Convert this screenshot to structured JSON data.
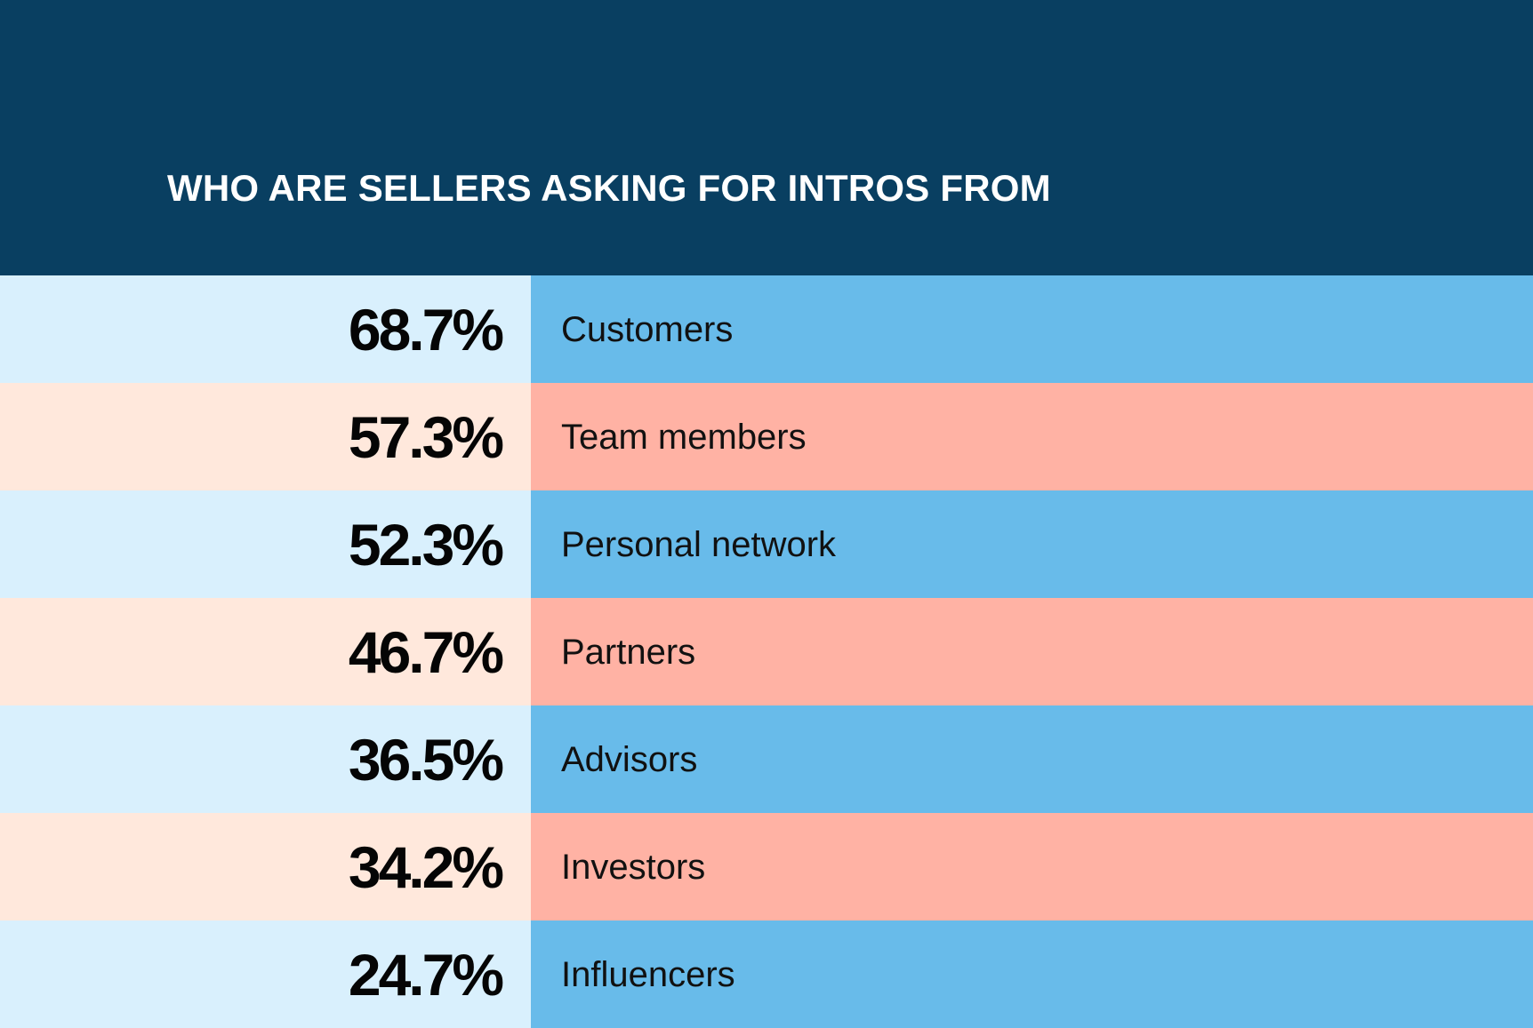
{
  "chart_data": {
    "type": "table",
    "title": "WHO ARE SELLERS ASKING FOR INTROS FROM",
    "categories": [
      "Customers",
      "Team members",
      "Personal network",
      "Partners",
      "Advisors",
      "Investors",
      "Influencers"
    ],
    "values": [
      68.7,
      57.3,
      52.3,
      46.7,
      36.5,
      34.2,
      24.7
    ],
    "value_labels": [
      "68.7%",
      "57.3%",
      "52.3%",
      "46.7%",
      "36.5%",
      "34.2%",
      "24.7%"
    ],
    "colors": {
      "header": "#093f61",
      "blue_light": "#d9f0fd",
      "blue": "#68bbea",
      "peach_light": "#ffe8dc",
      "peach": "#ffb2a4"
    }
  }
}
